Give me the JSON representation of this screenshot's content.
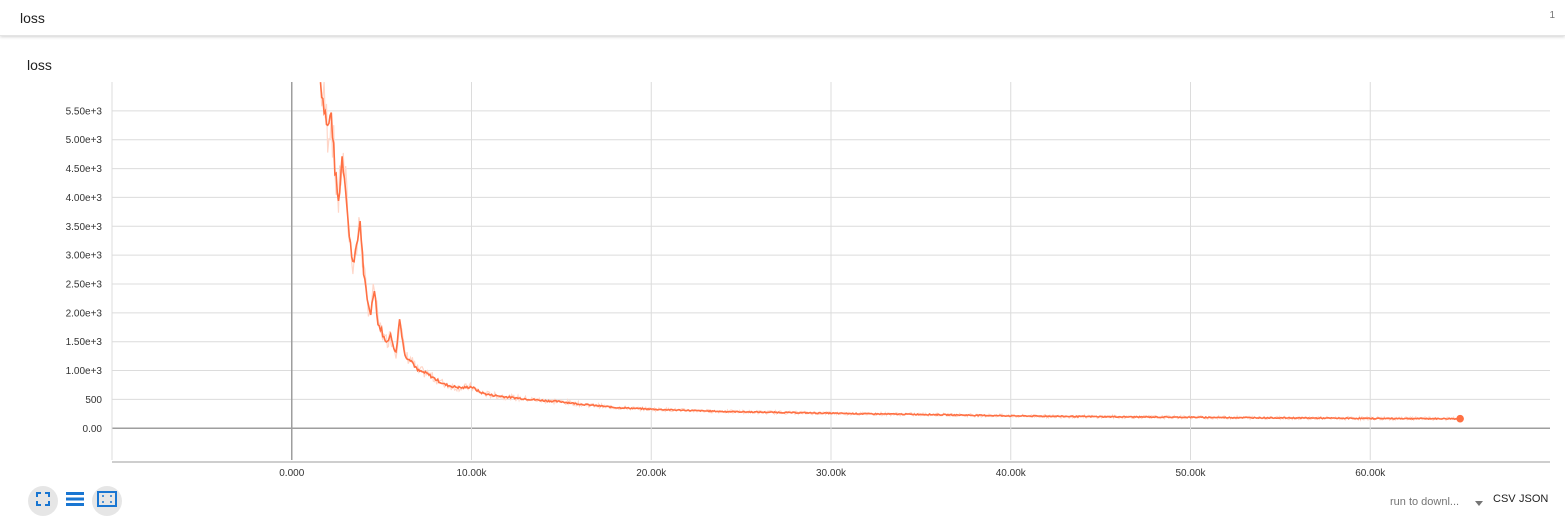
{
  "header": {
    "title": "loss",
    "count": "1"
  },
  "card": {
    "title": "loss"
  },
  "controls": {
    "run_select": "run to downl...",
    "csv_label": "CSV",
    "json_label": "JSON"
  },
  "colors": {
    "series": "#ff7043",
    "raw": "#ffd6c8",
    "grid": "#dcdcdc",
    "zero_axis": "#9e9e9e"
  },
  "icons": [
    "expand-icon",
    "list-icon",
    "fit-to-data-icon"
  ],
  "chart_data": {
    "type": "line",
    "title": "loss",
    "xlabel": "",
    "ylabel": "",
    "xlim": [
      -10000,
      70000
    ],
    "ylim": [
      -550,
      6000
    ],
    "x_ticks": [
      0,
      10000,
      20000,
      30000,
      40000,
      50000,
      60000
    ],
    "x_tick_labels": [
      "0.000",
      "10.00k",
      "20.00k",
      "30.00k",
      "40.00k",
      "50.00k",
      "60.00k"
    ],
    "y_ticks": [
      0,
      500,
      1000,
      1500,
      2000,
      2500,
      3000,
      3500,
      4000,
      4500,
      5000,
      5500
    ],
    "y_tick_labels": [
      "0.00",
      "500",
      "1.00e+3",
      "1.50e+3",
      "2.00e+3",
      "2.50e+3",
      "3.00e+3",
      "3.50e+3",
      "4.00e+3",
      "4.50e+3",
      "5.00e+3",
      "5.50e+3"
    ],
    "grid": true,
    "series": [
      {
        "x": [
          1600,
          1800,
          2000,
          2200,
          2400,
          2600,
          2800,
          3000,
          3200,
          3400,
          3600,
          3800,
          4000,
          4200,
          4400,
          4600,
          4800,
          5000,
          5200,
          5500,
          5800,
          6000,
          6300,
          6600,
          7000,
          7500,
          8000,
          8500,
          9000,
          9500,
          10000,
          10500,
          11000,
          12000,
          13000,
          14000,
          15000,
          16000,
          17000,
          18000,
          20000,
          22000,
          24000,
          26000,
          28000,
          30000,
          32000,
          35000,
          38000,
          40000,
          45000,
          50000,
          55000,
          60000,
          65000
        ],
        "y": [
          6000,
          5600,
          5200,
          5450,
          4500,
          3900,
          4700,
          4200,
          3300,
          2900,
          3100,
          3600,
          2700,
          2200,
          2000,
          2450,
          1800,
          1700,
          1500,
          1600,
          1300,
          1900,
          1250,
          1200,
          1000,
          950,
          850,
          760,
          720,
          700,
          720,
          620,
          580,
          540,
          510,
          480,
          460,
          420,
          390,
          360,
          330,
          310,
          290,
          280,
          270,
          260,
          250,
          240,
          225,
          215,
          200,
          190,
          180,
          170,
          165
        ]
      }
    ]
  }
}
